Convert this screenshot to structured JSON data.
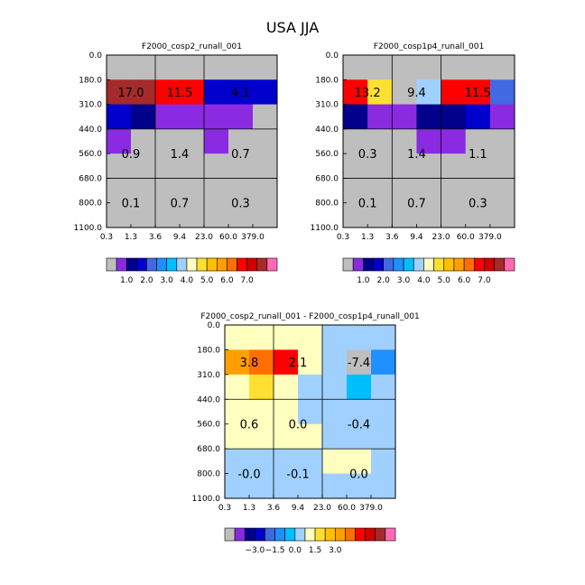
{
  "title": "USA JJA",
  "chart_data": [
    {
      "type": "heatmap",
      "title": "F2000_cosp2_runall_001",
      "x_ticks": [
        "0.3",
        "1.3",
        "3.6",
        "9.4",
        "23.0",
        "60.0",
        "379.0"
      ],
      "y_ticks": [
        "0.0",
        "180.0",
        "310.0",
        "440.0",
        "560.0",
        "680.0",
        "800.0",
        "1100.0"
      ],
      "cells": [
        [
          "#BEBEBE",
          "#BEBEBE",
          "#BEBEBE",
          "#BEBEBE",
          "#BEBEBE",
          "#BEBEBE",
          "#BEBEBE"
        ],
        [
          "#A52A2A",
          "#A52A2A",
          "#FF0000",
          "#FF0000",
          "#0000CD",
          "#0000CD",
          "#0000CD"
        ],
        [
          "#0000CD",
          "#00008B",
          "#8A2BE2",
          "#8A2BE2",
          "#8A2BE2",
          "#8A2BE2",
          "#BEBEBE"
        ],
        [
          "#8A2BE2",
          "#BEBEBE",
          "#BEBEBE",
          "#BEBEBE",
          "#8A2BE2",
          "#BEBEBE",
          "#BEBEBE"
        ],
        [
          "#BEBEBE",
          "#BEBEBE",
          "#BEBEBE",
          "#BEBEBE",
          "#BEBEBE",
          "#BEBEBE",
          "#BEBEBE"
        ],
        [
          "#BEBEBE",
          "#BEBEBE",
          "#BEBEBE",
          "#BEBEBE",
          "#BEBEBE",
          "#BEBEBE",
          "#BEBEBE"
        ],
        [
          "#BEBEBE",
          "#BEBEBE",
          "#BEBEBE",
          "#BEBEBE",
          "#BEBEBE",
          "#BEBEBE",
          "#BEBEBE"
        ]
      ],
      "boxes": [
        [
          "17.0",
          "11.5",
          "4.1"
        ],
        [
          "0.9",
          "1.4",
          "0.7"
        ],
        [
          "0.1",
          "0.7",
          "0.3"
        ]
      ],
      "colorbar": {
        "colors": [
          "#BEBEBE",
          "#8A2BE2",
          "#00008B",
          "#0000CD",
          "#4169E1",
          "#1E90FF",
          "#00BFFF",
          "#A0D0FF",
          "#FFFFC0",
          "#FFE030",
          "#FFC000",
          "#FFA000",
          "#FF7000",
          "#FF0000",
          "#D00000",
          "#A52A2A",
          "#FF69B4"
        ],
        "labels": [
          "1.0",
          "2.0",
          "3.0",
          "4.0",
          "5.0",
          "6.0",
          "7.0"
        ]
      }
    },
    {
      "type": "heatmap",
      "title": "F2000_cosp1p4_runall_001",
      "x_ticks": [
        "0.3",
        "1.3",
        "3.6",
        "9.4",
        "23.0",
        "60.0",
        "379.0"
      ],
      "y_ticks": [
        "0.0",
        "180.0",
        "310.0",
        "440.0",
        "560.0",
        "680.0",
        "800.0",
        "1100.0"
      ],
      "cells": [
        [
          "#BEBEBE",
          "#BEBEBE",
          "#BEBEBE",
          "#BEBEBE",
          "#BEBEBE",
          "#BEBEBE",
          "#BEBEBE"
        ],
        [
          "#FF0000",
          "#FFE030",
          "#BEBEBE",
          "#A0D0FF",
          "#FF0000",
          "#FF0000",
          "#4169E1"
        ],
        [
          "#00008B",
          "#8A2BE2",
          "#8A2BE2",
          "#00008B",
          "#00008B",
          "#0000CD",
          "#8A2BE2"
        ],
        [
          "#BEBEBE",
          "#BEBEBE",
          "#BEBEBE",
          "#8A2BE2",
          "#8A2BE2",
          "#BEBEBE",
          "#BEBEBE"
        ],
        [
          "#BEBEBE",
          "#BEBEBE",
          "#BEBEBE",
          "#BEBEBE",
          "#BEBEBE",
          "#BEBEBE",
          "#BEBEBE"
        ],
        [
          "#BEBEBE",
          "#BEBEBE",
          "#BEBEBE",
          "#BEBEBE",
          "#BEBEBE",
          "#BEBEBE",
          "#BEBEBE"
        ],
        [
          "#BEBEBE",
          "#BEBEBE",
          "#BEBEBE",
          "#BEBEBE",
          "#BEBEBE",
          "#BEBEBE",
          "#BEBEBE"
        ]
      ],
      "boxes": [
        [
          "13.2",
          "9.4",
          "11.5"
        ],
        [
          "0.3",
          "1.4",
          "1.1"
        ],
        [
          "0.1",
          "0.7",
          "0.3"
        ]
      ],
      "colorbar": {
        "colors": [
          "#BEBEBE",
          "#8A2BE2",
          "#00008B",
          "#0000CD",
          "#4169E1",
          "#1E90FF",
          "#00BFFF",
          "#A0D0FF",
          "#FFFFC0",
          "#FFE030",
          "#FFC000",
          "#FFA000",
          "#FF7000",
          "#FF0000",
          "#D00000",
          "#A52A2A",
          "#FF69B4"
        ],
        "labels": [
          "1.0",
          "2.0",
          "3.0",
          "4.0",
          "5.0",
          "6.0",
          "7.0"
        ]
      }
    },
    {
      "type": "heatmap",
      "title": "F2000_cosp2_runall_001 - F2000_cosp1p4_runall_001",
      "x_ticks": [
        "0.3",
        "1.3",
        "3.6",
        "9.4",
        "23.0",
        "60.0",
        "379.0"
      ],
      "y_ticks": [
        "0.0",
        "180.0",
        "310.0",
        "440.0",
        "560.0",
        "680.0",
        "800.0",
        "1100.0"
      ],
      "cells": [
        [
          "#FFFFC0",
          "#FFFFC0",
          "#FFFFC0",
          "#FFFFC0",
          "#A0D0FF",
          "#A0D0FF",
          "#A0D0FF"
        ],
        [
          "#FFA000",
          "#FF7000",
          "#FF0000",
          "#FFFFC0",
          "#A0D0FF",
          "#BEBEBE",
          "#1E90FF"
        ],
        [
          "#FFFFC0",
          "#FFE030",
          "#FFFFC0",
          "#A0D0FF",
          "#A0D0FF",
          "#00BFFF",
          "#A0D0FF"
        ],
        [
          "#FFFFC0",
          "#FFFFC0",
          "#FFFFC0",
          "#A0D0FF",
          "#A0D0FF",
          "#A0D0FF",
          "#A0D0FF"
        ],
        [
          "#FFFFC0",
          "#FFFFC0",
          "#FFFFC0",
          "#FFFFC0",
          "#A0D0FF",
          "#A0D0FF",
          "#A0D0FF"
        ],
        [
          "#A0D0FF",
          "#A0D0FF",
          "#A0D0FF",
          "#A0D0FF",
          "#FFFFC0",
          "#FFFFC0",
          "#A0D0FF"
        ],
        [
          "#A0D0FF",
          "#A0D0FF",
          "#A0D0FF",
          "#A0D0FF",
          "#A0D0FF",
          "#A0D0FF",
          "#A0D0FF"
        ]
      ],
      "boxes": [
        [
          "3.8",
          "2.1",
          "-7.4"
        ],
        [
          "0.6",
          "0.0",
          "-0.4"
        ],
        [
          "-0.0",
          "-0.1",
          "0.0"
        ]
      ],
      "colorbar": {
        "colors": [
          "#BEBEBE",
          "#8A2BE2",
          "#00008B",
          "#0000CD",
          "#4169E1",
          "#1E90FF",
          "#00BFFF",
          "#A0D0FF",
          "#FFFFC0",
          "#FFE030",
          "#FFC000",
          "#FFA000",
          "#FF7000",
          "#FF0000",
          "#D00000",
          "#A52A2A",
          "#FF69B4"
        ],
        "labels": [
          "−3.0",
          "−1.5",
          "0.0",
          "1.5",
          "3.0"
        ]
      }
    }
  ]
}
